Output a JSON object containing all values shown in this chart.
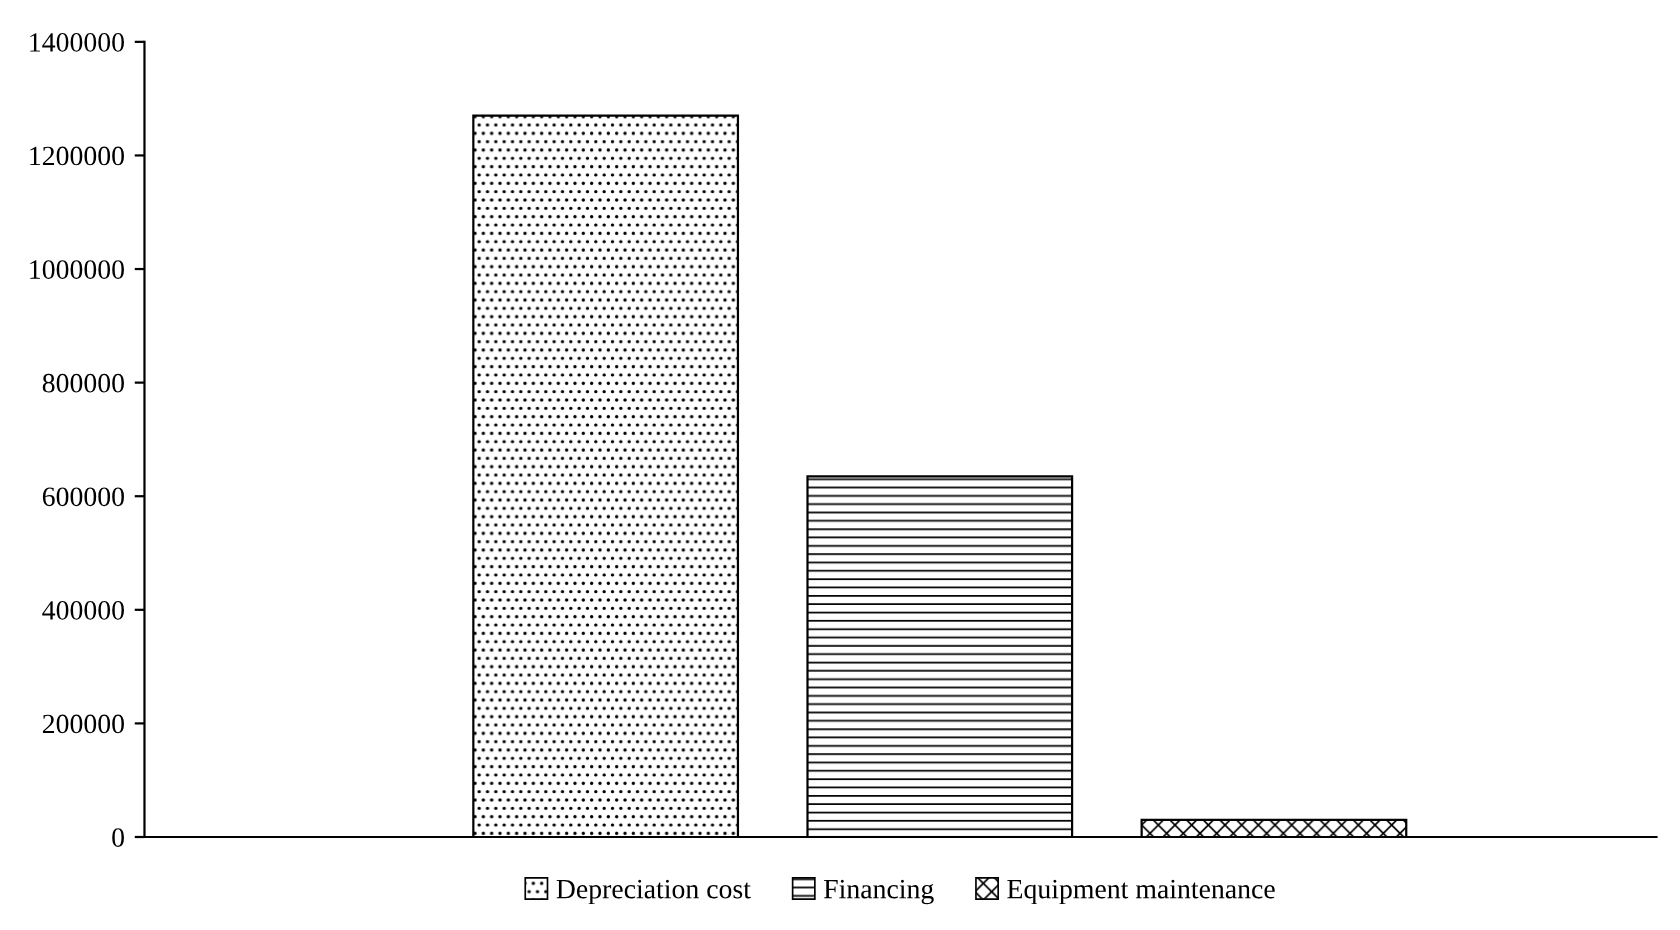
{
  "chart_data": {
    "type": "bar",
    "categories": [
      null
    ],
    "series": [
      {
        "name": "Depreciation cost",
        "color": "#000000",
        "values": [
          1270000
        ]
      },
      {
        "name": "Financing",
        "color": "#000000",
        "values": [
          635000
        ]
      },
      {
        "name": "Equipment maintenance",
        "color": "#000000",
        "values": [
          30000
        ]
      }
    ],
    "ylim": [
      0,
      1400000
    ],
    "yticks": [
      0,
      200000,
      400000,
      600000,
      800000,
      1000000,
      1200000,
      1400000
    ],
    "legend": "bottom",
    "grid": false
  }
}
